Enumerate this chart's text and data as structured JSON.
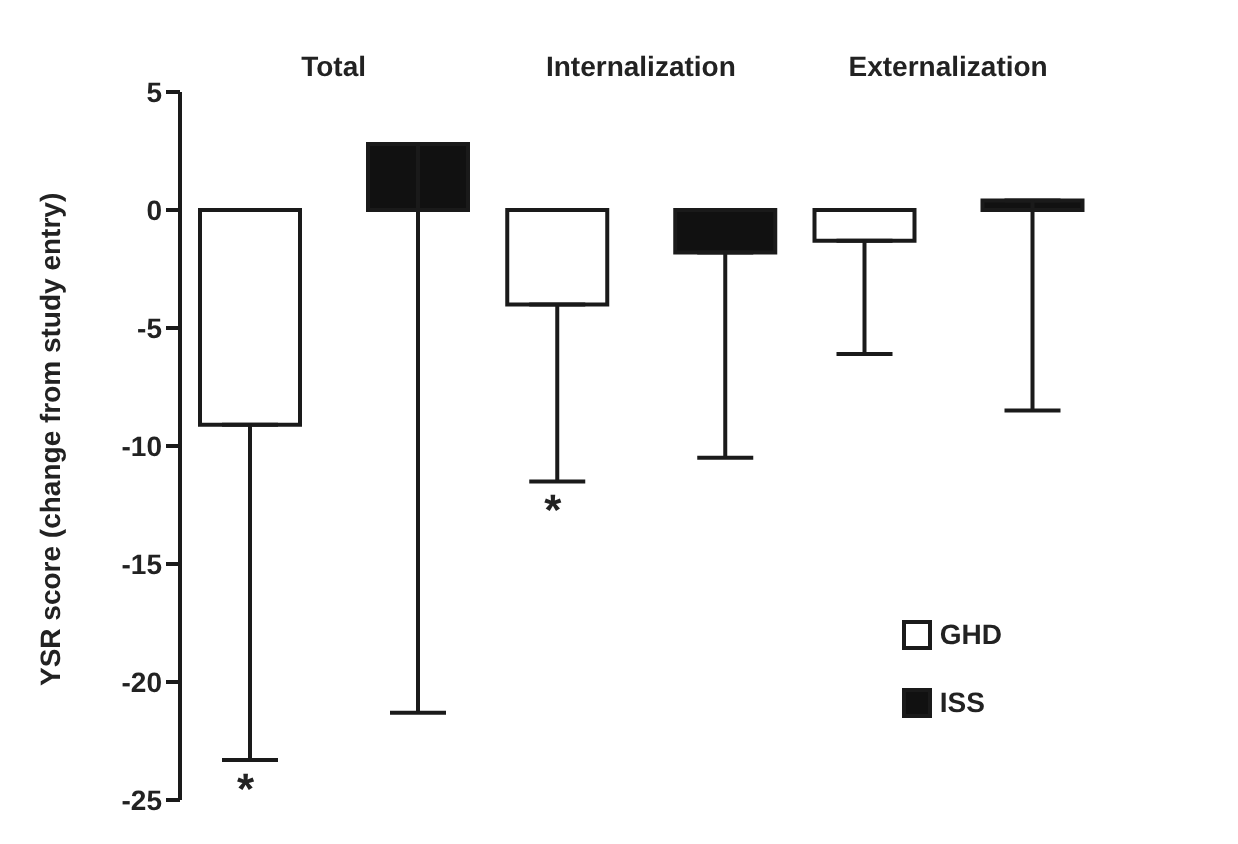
{
  "chart_data": {
    "type": "bar",
    "ylabel": "YSR score (change from study entry)",
    "categories": [
      "Total",
      "Internalization",
      "Externalization"
    ],
    "series": [
      {
        "name": "GHD",
        "color": "#ffffff",
        "values": [
          -9.1,
          -4.0,
          -1.3
        ],
        "errors": [
          [
            -23.3,
            -9.1
          ],
          [
            -11.5,
            -4.0
          ],
          [
            -6.1,
            -1.3
          ]
        ]
      },
      {
        "name": "ISS",
        "color": "#111111",
        "values": [
          2.8,
          -1.8,
          0.4
        ],
        "errors": [
          [
            -21.3,
            2.8
          ],
          [
            -10.5,
            -1.8
          ],
          [
            -8.5,
            0.4
          ]
        ]
      }
    ],
    "ylim": [
      -25,
      5
    ],
    "yticks": [
      -25,
      -20,
      -15,
      -10,
      -5,
      0,
      5
    ],
    "grid": false,
    "legend": "bottom right",
    "annotations": [
      "*",
      "*"
    ]
  }
}
